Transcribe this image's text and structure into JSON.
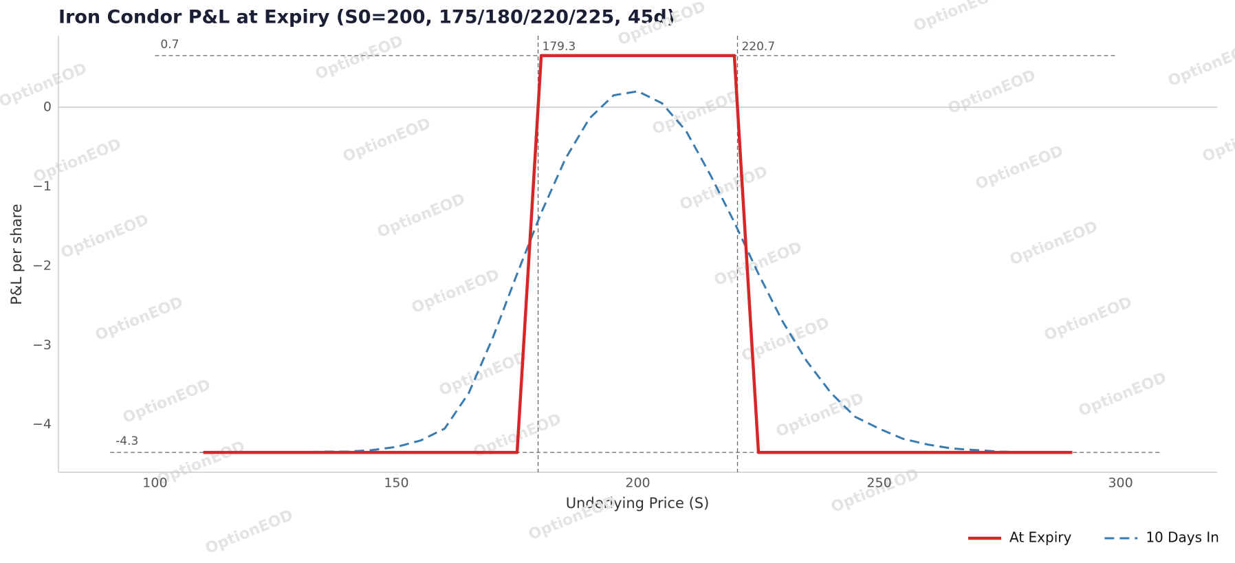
{
  "chart_data": {
    "type": "line",
    "title": "Iron Condor P&L at Expiry (S0=200, 175/180/220/225, 45d)",
    "x_label": "Underlying Price (S)",
    "y_label": "P&L per share",
    "watermark": "OptionEOD",
    "x": [
      110,
      115,
      120,
      125,
      130,
      135,
      140,
      145,
      150,
      155,
      160,
      165,
      170,
      175,
      180,
      185,
      190,
      195,
      200,
      205,
      210,
      215,
      220,
      225,
      230,
      235,
      240,
      245,
      250,
      255,
      260,
      265,
      270,
      275,
      280,
      285,
      290
    ],
    "series": [
      {
        "name": "At Expiry",
        "color": "#d62728",
        "style": "solid",
        "values": [
          -4.35,
          -4.35,
          -4.35,
          -4.35,
          -4.35,
          -4.35,
          -4.35,
          -4.35,
          -4.35,
          -4.35,
          -4.35,
          -4.35,
          -4.35,
          -4.35,
          0.65,
          0.65,
          0.65,
          0.65,
          0.65,
          0.65,
          0.65,
          0.65,
          0.65,
          -4.35,
          -4.35,
          -4.35,
          -4.35,
          -4.35,
          -4.35,
          -4.35,
          -4.35,
          -4.35,
          -4.35,
          -4.35,
          -4.35,
          -4.35,
          -4.35
        ]
      },
      {
        "name": "10 Days In",
        "color": "#3a7bb0",
        "style": "dashed",
        "values": [
          -4.35,
          -4.35,
          -4.35,
          -4.35,
          -4.35,
          -4.34,
          -4.34,
          -4.32,
          -4.28,
          -4.2,
          -4.05,
          -3.6,
          -2.9,
          -2.1,
          -1.33,
          -0.65,
          -0.14,
          0.15,
          0.2,
          0.05,
          -0.3,
          -0.85,
          -1.45,
          -2.1,
          -2.7,
          -3.2,
          -3.6,
          -3.9,
          -4.05,
          -4.18,
          -4.25,
          -4.3,
          -4.32,
          -4.34,
          -4.35,
          -4.35,
          -4.35
        ]
      }
    ],
    "hlines": [
      {
        "value": 0.65,
        "label": "0.7"
      },
      {
        "value": -4.35,
        "label": "-4.3"
      }
    ],
    "vlines": [
      {
        "value": 179.35,
        "label": "179.3"
      },
      {
        "value": 220.65,
        "label": "220.7"
      }
    ],
    "xlim": [
      80,
      320
    ],
    "ylim": [
      -4.6,
      0.9
    ],
    "xticks": [
      100,
      150,
      200,
      250,
      300
    ],
    "yticks": [
      {
        "value": -4,
        "label": "−4"
      },
      {
        "value": -3,
        "label": "−3"
      },
      {
        "value": -2,
        "label": "−2"
      },
      {
        "value": -1,
        "label": "−1"
      },
      0
    ],
    "legend": "bottom-right"
  }
}
